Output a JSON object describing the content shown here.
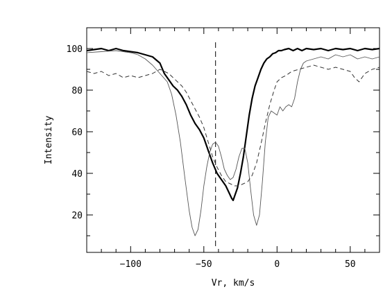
{
  "chart_data": {
    "type": "line",
    "title": "",
    "xlabel": "Vr, km/s",
    "ylabel": "Intensity",
    "xlim": [
      -130,
      70
    ],
    "ylim": [
      2,
      110
    ],
    "x_ticks_major": [
      -100,
      -50,
      0,
      50
    ],
    "x_ticks_minor": [
      -120,
      -110,
      -90,
      -80,
      -70,
      -60,
      -40,
      -30,
      -20,
      -10,
      10,
      20,
      30,
      40,
      60
    ],
    "y_ticks_major": [
      20,
      40,
      60,
      80,
      100
    ],
    "y_ticks_minor": [
      10,
      30,
      50,
      70,
      90
    ],
    "x_tick_labels": [
      "−100",
      "−50",
      "0",
      "50"
    ],
    "y_tick_labels": [
      "20",
      "40",
      "60",
      "80",
      "100"
    ],
    "grid": false,
    "legend": "none",
    "reference_line": {
      "x": -42,
      "style": "dashed"
    },
    "series": [
      {
        "style": "thick-solid",
        "x": [
          -130,
          -125,
          -120,
          -115,
          -110,
          -105,
          -100,
          -95,
          -90,
          -85,
          -80,
          -77,
          -74,
          -71,
          -68,
          -65,
          -62,
          -59,
          -56,
          -53,
          -50,
          -47,
          -44,
          -41,
          -38,
          -35,
          -33,
          -31,
          -30,
          -29,
          -27,
          -25,
          -23,
          -21,
          -19,
          -17,
          -15,
          -13,
          -11,
          -9,
          -7,
          -5,
          -3,
          -1,
          1,
          3,
          5,
          8,
          11,
          14,
          17,
          20,
          25,
          30,
          35,
          40,
          45,
          50,
          55,
          60,
          65,
          70
        ],
        "y": [
          99,
          99.5,
          100,
          99,
          100,
          99,
          98.5,
          98,
          97,
          96,
          93,
          88,
          85,
          82,
          80,
          77,
          73,
          68,
          64,
          61,
          57,
          51,
          45,
          40,
          37,
          34,
          31,
          28,
          27,
          29,
          33,
          40,
          48,
          58,
          68,
          76,
          82,
          86,
          90,
          93,
          95,
          96,
          97.5,
          98,
          99,
          99,
          99.5,
          100,
          99,
          100,
          99,
          100,
          99.5,
          100,
          99,
          100,
          99.5,
          100,
          99,
          100,
          99.5,
          100
        ]
      },
      {
        "style": "thin-solid",
        "x": [
          -130,
          -120,
          -110,
          -100,
          -95,
          -90,
          -85,
          -80,
          -75,
          -72,
          -69,
          -66,
          -63,
          -60,
          -58,
          -56,
          -54,
          -52,
          -50,
          -48,
          -46,
          -44,
          -42,
          -40,
          -38,
          -36,
          -34,
          -32,
          -30,
          -28,
          -26,
          -24,
          -22,
          -20,
          -18,
          -16,
          -14,
          -12,
          -10,
          -8,
          -6,
          -4,
          -2,
          0,
          2,
          4,
          6,
          8,
          10,
          12,
          14,
          16,
          18,
          20,
          25,
          30,
          35,
          40,
          45,
          50,
          55,
          60,
          65,
          70
        ],
        "y": [
          98,
          98.5,
          99,
          98,
          97,
          95,
          92,
          88,
          84,
          78,
          68,
          55,
          38,
          22,
          14,
          10,
          13,
          22,
          34,
          43,
          50,
          54,
          55,
          53,
          48,
          42,
          39,
          37,
          38,
          42,
          48,
          52,
          52,
          45,
          32,
          20,
          15,
          20,
          36,
          55,
          67,
          70,
          69,
          68,
          72,
          70,
          72,
          73,
          72,
          76,
          84,
          90,
          93,
          94,
          95,
          96,
          95,
          97,
          96,
          97,
          95,
          96,
          95,
          96
        ]
      },
      {
        "style": "dashed",
        "x": [
          -130,
          -125,
          -120,
          -115,
          -110,
          -105,
          -100,
          -95,
          -90,
          -85,
          -80,
          -77,
          -74,
          -71,
          -68,
          -65,
          -62,
          -59,
          -56,
          -53,
          -50,
          -47,
          -44,
          -41,
          -38,
          -35,
          -32,
          -29,
          -26,
          -23,
          -20,
          -17,
          -14,
          -11,
          -8,
          -5,
          -2,
          0,
          3,
          6,
          10,
          15,
          20,
          25,
          30,
          35,
          40,
          45,
          50,
          53,
          56,
          60,
          65,
          70
        ],
        "y": [
          89,
          88,
          89,
          87,
          88,
          86,
          87,
          86,
          87,
          88,
          90,
          89,
          88,
          86,
          84,
          82,
          79,
          75,
          71,
          67,
          62,
          55,
          48,
          43,
          39,
          36,
          35,
          34,
          34,
          35,
          36,
          39,
          45,
          54,
          64,
          73,
          80,
          84,
          86,
          87,
          89,
          90,
          91,
          92,
          91,
          90,
          91,
          90,
          89,
          86,
          84,
          88,
          90,
          91
        ]
      }
    ]
  }
}
